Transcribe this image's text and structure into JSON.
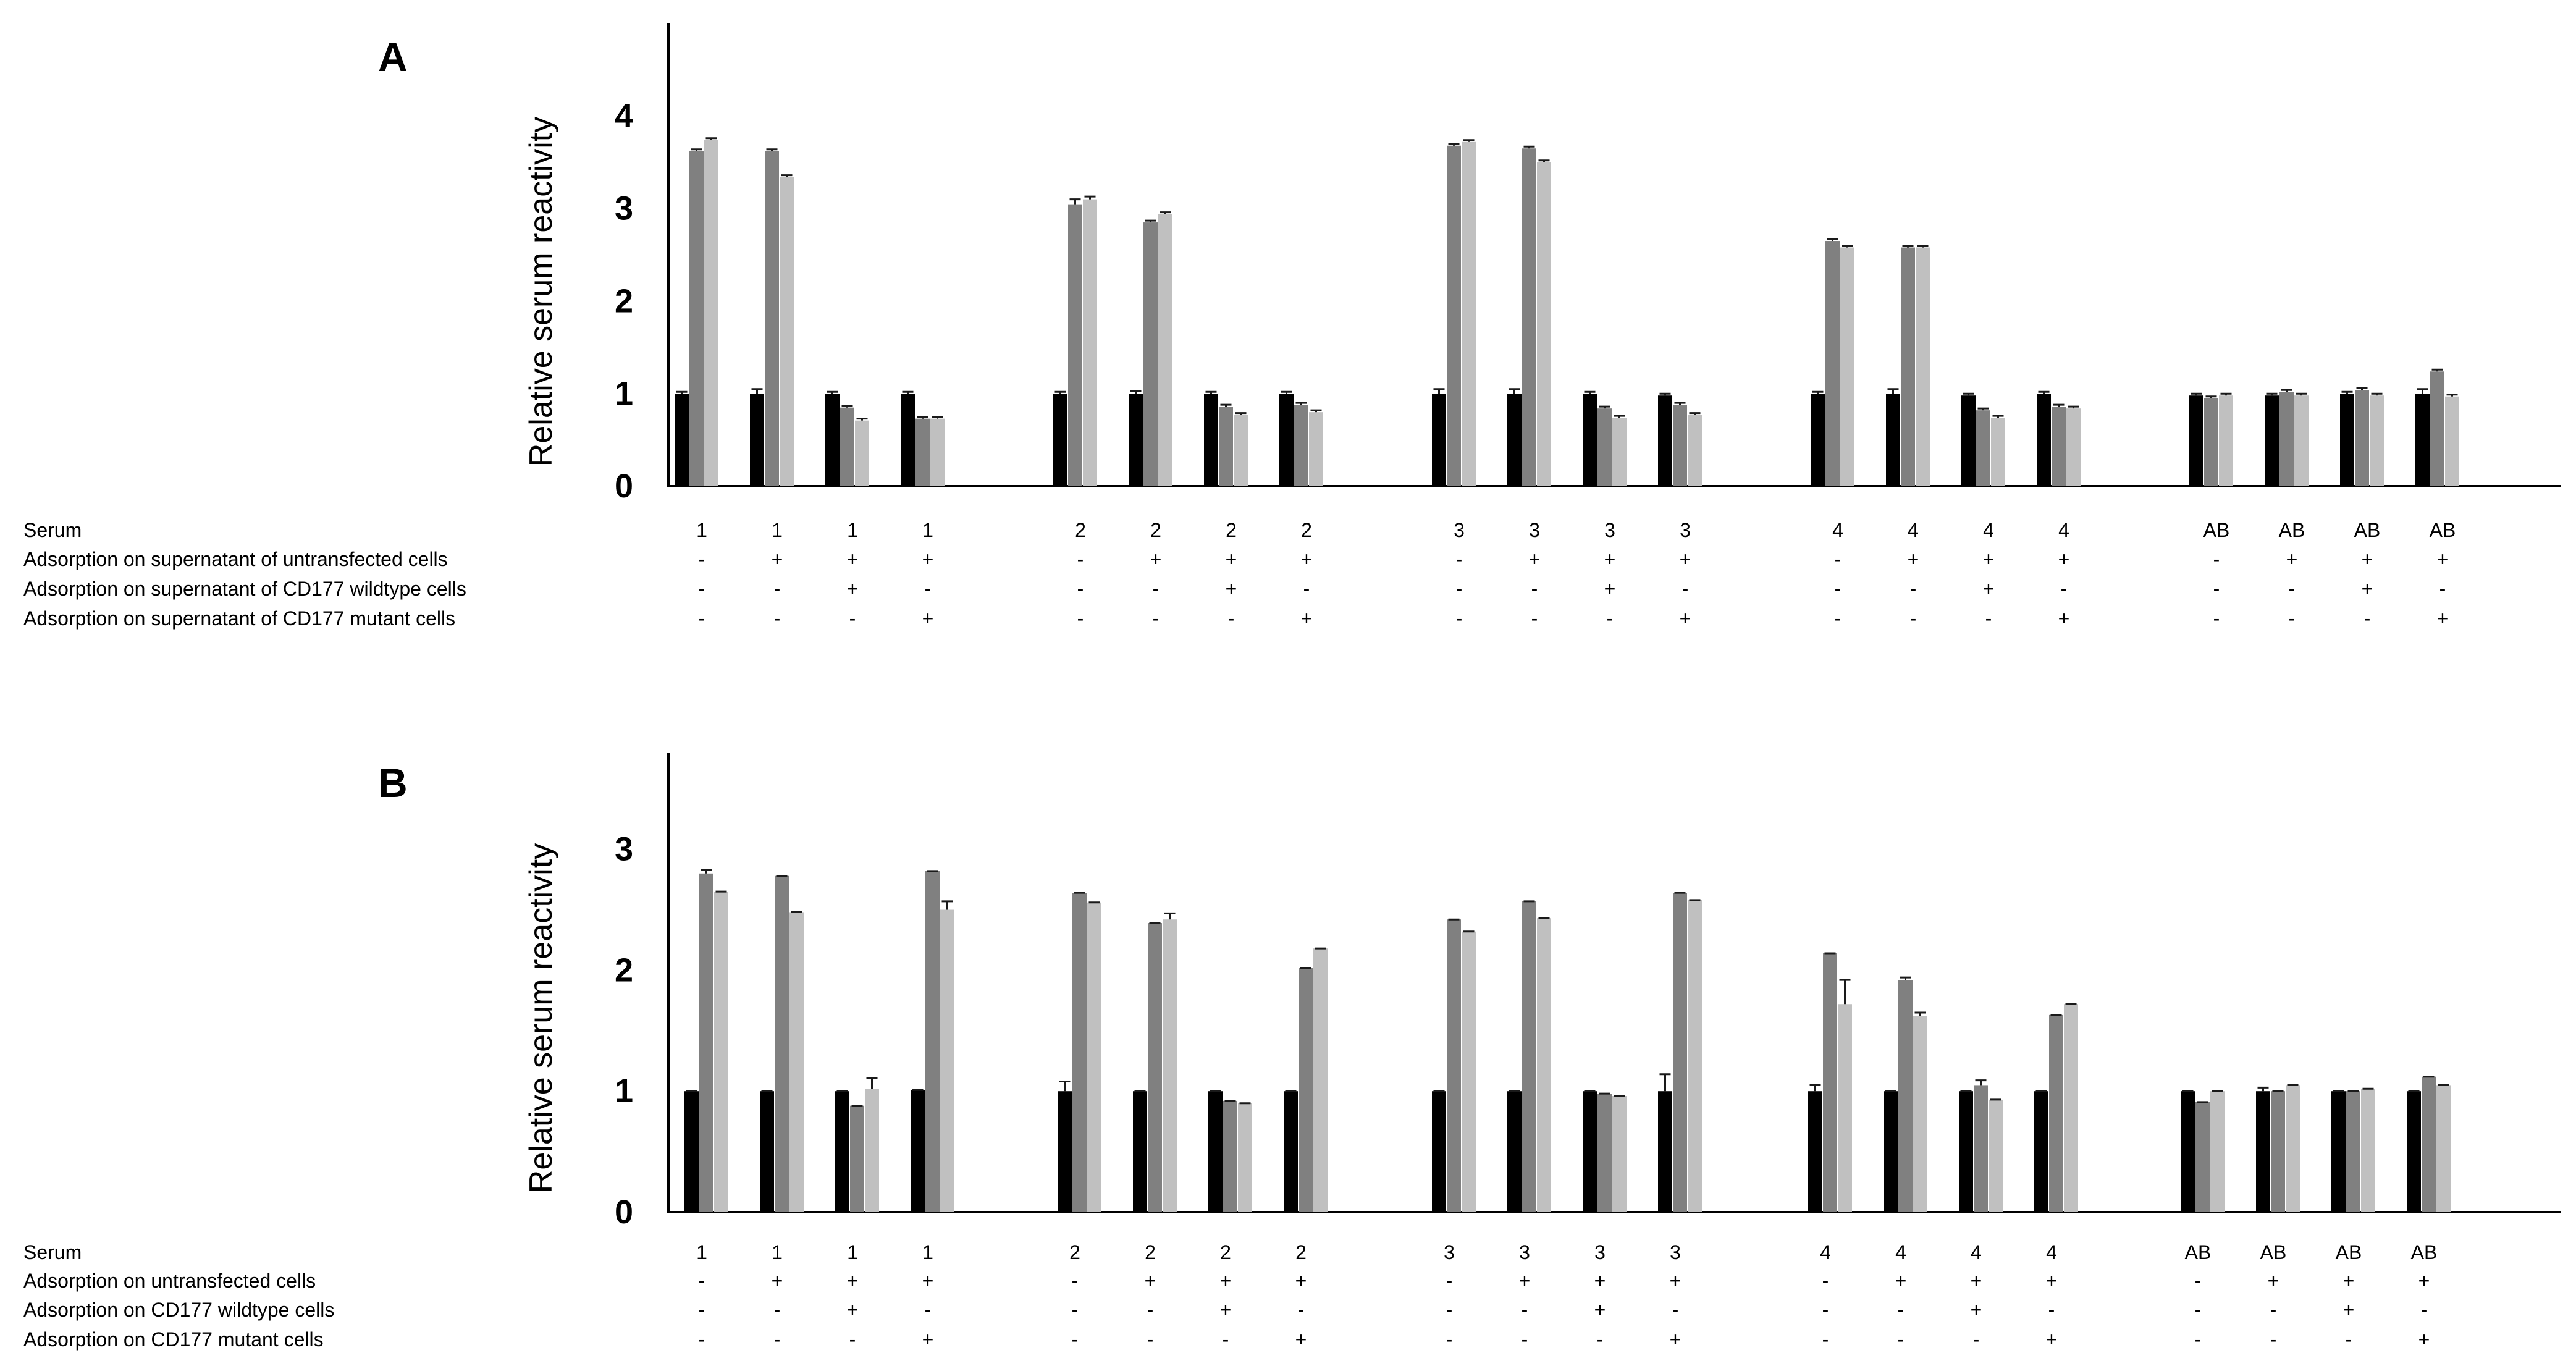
{
  "chart_data": [
    {
      "type": "bar",
      "panel": "A",
      "ylabel": "Relative serum reactivity",
      "ylim": [
        0,
        5
      ],
      "yticks": [
        0,
        1,
        2,
        3,
        4
      ],
      "grid": false,
      "legend": "none",
      "series_colors": [
        "#000000",
        "#808080",
        "#c0c0c0"
      ],
      "row_labels": [
        "Serum",
        "Adsorption on supernatant of untransfected cells",
        "Adsorption on supernatant of CD177 wildtype cells",
        "Adsorption on supernatant of CD177 mutant cells"
      ],
      "conditions": [
        {
          "rows": [
            "1",
            "-",
            "-",
            "-"
          ],
          "values": [
            1.0,
            3.62,
            3.74
          ],
          "errors": [
            0.02,
            0.02,
            0.02
          ]
        },
        {
          "rows": [
            "1",
            "+",
            "-",
            "-"
          ],
          "values": [
            1.0,
            3.62,
            3.34
          ],
          "errors": [
            0.05,
            0.02,
            0.02
          ]
        },
        {
          "rows": [
            "1",
            "+",
            "+",
            "-"
          ],
          "values": [
            1.0,
            0.85,
            0.71
          ],
          "errors": [
            0.02,
            0.02,
            0.02
          ]
        },
        {
          "rows": [
            "1",
            "+",
            "-",
            "+"
          ],
          "values": [
            1.0,
            0.73,
            0.73
          ],
          "errors": [
            0.02,
            0.02,
            0.02
          ]
        },
        {
          "rows": [
            "2",
            "-",
            "-",
            "-"
          ],
          "values": [
            1.0,
            3.04,
            3.1
          ],
          "errors": [
            0.02,
            0.06,
            0.03
          ]
        },
        {
          "rows": [
            "2",
            "+",
            "-",
            "-"
          ],
          "values": [
            1.0,
            2.85,
            2.94
          ],
          "errors": [
            0.03,
            0.02,
            0.02
          ]
        },
        {
          "rows": [
            "2",
            "+",
            "+",
            "-"
          ],
          "values": [
            1.0,
            0.86,
            0.77
          ],
          "errors": [
            0.02,
            0.02,
            0.02
          ]
        },
        {
          "rows": [
            "2",
            "+",
            "-",
            "+"
          ],
          "values": [
            1.0,
            0.88,
            0.8
          ],
          "errors": [
            0.02,
            0.02,
            0.02
          ]
        },
        {
          "rows": [
            "3",
            "-",
            "-",
            "-"
          ],
          "values": [
            1.0,
            3.68,
            3.72
          ],
          "errors": [
            0.05,
            0.02,
            0.02
          ]
        },
        {
          "rows": [
            "3",
            "+",
            "-",
            "-"
          ],
          "values": [
            1.0,
            3.65,
            3.5
          ],
          "errors": [
            0.05,
            0.02,
            0.02
          ]
        },
        {
          "rows": [
            "3",
            "+",
            "+",
            "-"
          ],
          "values": [
            1.0,
            0.84,
            0.74
          ],
          "errors": [
            0.02,
            0.02,
            0.02
          ]
        },
        {
          "rows": [
            "3",
            "+",
            "-",
            "+"
          ],
          "values": [
            0.98,
            0.88,
            0.77
          ],
          "errors": [
            0.02,
            0.02,
            0.02
          ]
        },
        {
          "rows": [
            "4",
            "-",
            "-",
            "-"
          ],
          "values": [
            1.0,
            2.65,
            2.58
          ],
          "errors": [
            0.02,
            0.02,
            0.02
          ]
        },
        {
          "rows": [
            "4",
            "+",
            "-",
            "-"
          ],
          "values": [
            1.0,
            2.58,
            2.58
          ],
          "errors": [
            0.05,
            0.02,
            0.02
          ]
        },
        {
          "rows": [
            "4",
            "+",
            "+",
            "-"
          ],
          "values": [
            0.98,
            0.82,
            0.74
          ],
          "errors": [
            0.02,
            0.02,
            0.02
          ]
        },
        {
          "rows": [
            "4",
            "+",
            "-",
            "+"
          ],
          "values": [
            1.0,
            0.86,
            0.84
          ],
          "errors": [
            0.02,
            0.02,
            0.02
          ]
        },
        {
          "rows": [
            "AB",
            "-",
            "-",
            "-"
          ],
          "values": [
            0.98,
            0.95,
            0.98
          ],
          "errors": [
            0.02,
            0.02,
            0.02
          ]
        },
        {
          "rows": [
            "AB",
            "+",
            "-",
            "-"
          ],
          "values": [
            0.98,
            1.02,
            0.98
          ],
          "errors": [
            0.02,
            0.02,
            0.02
          ]
        },
        {
          "rows": [
            "AB",
            "+",
            "+",
            "-"
          ],
          "values": [
            1.0,
            1.04,
            0.98
          ],
          "errors": [
            0.02,
            0.02,
            0.02
          ]
        },
        {
          "rows": [
            "AB",
            "+",
            "-",
            "+"
          ],
          "values": [
            1.0,
            1.24,
            0.97
          ],
          "errors": [
            0.05,
            0.02,
            0.02
          ]
        }
      ]
    },
    {
      "type": "bar",
      "panel": "B",
      "ylabel": "Relative serum reactivity",
      "ylim": [
        0,
        3.8
      ],
      "yticks": [
        0,
        1,
        2,
        3
      ],
      "grid": false,
      "legend": "none",
      "series_colors": [
        "#000000",
        "#808080",
        "#c0c0c0"
      ],
      "row_labels": [
        "Serum",
        "Adsorption on untransfected cells",
        "Adsorption on CD177 wildtype cells",
        "Adsorption on CD177 mutant cells"
      ],
      "conditions": [
        {
          "rows": [
            "1",
            "-",
            "-",
            "-"
          ],
          "values": [
            1.0,
            2.8,
            2.65
          ],
          "errors": [
            0.0,
            0.03,
            0.0
          ]
        },
        {
          "rows": [
            "1",
            "+",
            "-",
            "-"
          ],
          "values": [
            1.0,
            2.78,
            2.48
          ],
          "errors": [
            0.0,
            0.0,
            0.0
          ]
        },
        {
          "rows": [
            "1",
            "+",
            "+",
            "-"
          ],
          "values": [
            1.0,
            0.88,
            1.02
          ],
          "errors": [
            0.0,
            0.0,
            0.09
          ]
        },
        {
          "rows": [
            "1",
            "+",
            "-",
            "+"
          ],
          "values": [
            1.01,
            2.82,
            2.5
          ],
          "errors": [
            0.0,
            0.0,
            0.07
          ]
        },
        {
          "rows": [
            "2",
            "-",
            "-",
            "-"
          ],
          "values": [
            1.0,
            2.64,
            2.56
          ],
          "errors": [
            0.08,
            0.0,
            0.0
          ]
        },
        {
          "rows": [
            "2",
            "+",
            "-",
            "-"
          ],
          "values": [
            1.0,
            2.39,
            2.42
          ],
          "errors": [
            0.0,
            0.0,
            0.05
          ]
        },
        {
          "rows": [
            "2",
            "+",
            "+",
            "-"
          ],
          "values": [
            1.0,
            0.92,
            0.9
          ],
          "errors": [
            0.0,
            0.0,
            0.0
          ]
        },
        {
          "rows": [
            "2",
            "+",
            "-",
            "+"
          ],
          "values": [
            1.0,
            2.02,
            2.18
          ],
          "errors": [
            0.0,
            0.0,
            0.0
          ]
        },
        {
          "rows": [
            "3",
            "-",
            "-",
            "-"
          ],
          "values": [
            1.0,
            2.42,
            2.32
          ],
          "errors": [
            0.0,
            0.0,
            0.0
          ]
        },
        {
          "rows": [
            "3",
            "+",
            "-",
            "-"
          ],
          "values": [
            1.0,
            2.57,
            2.43
          ],
          "errors": [
            0.0,
            0.0,
            0.0
          ]
        },
        {
          "rows": [
            "3",
            "+",
            "+",
            "-"
          ],
          "values": [
            1.0,
            0.98,
            0.96
          ],
          "errors": [
            0.0,
            0.0,
            0.0
          ]
        },
        {
          "rows": [
            "3",
            "+",
            "-",
            "+"
          ],
          "values": [
            1.0,
            2.64,
            2.58
          ],
          "errors": [
            0.14,
            0.0,
            0.0
          ]
        },
        {
          "rows": [
            "4",
            "-",
            "-",
            "-"
          ],
          "values": [
            1.0,
            2.14,
            1.72
          ],
          "errors": [
            0.05,
            0.0,
            0.2
          ]
        },
        {
          "rows": [
            "4",
            "+",
            "-",
            "-"
          ],
          "values": [
            1.0,
            1.92,
            1.62
          ],
          "errors": [
            0.0,
            0.02,
            0.03
          ]
        },
        {
          "rows": [
            "4",
            "+",
            "+",
            "-"
          ],
          "values": [
            1.0,
            1.05,
            0.93
          ],
          "errors": [
            0.0,
            0.04,
            0.0
          ]
        },
        {
          "rows": [
            "4",
            "+",
            "-",
            "+"
          ],
          "values": [
            1.0,
            1.63,
            1.72
          ],
          "errors": [
            0.0,
            0.0,
            0.0
          ]
        },
        {
          "rows": [
            "AB",
            "-",
            "-",
            "-"
          ],
          "values": [
            1.0,
            0.91,
            1.0
          ],
          "errors": [
            0.0,
            0.0,
            0.0
          ]
        },
        {
          "rows": [
            "AB",
            "+",
            "-",
            "-"
          ],
          "values": [
            1.0,
            1.0,
            1.05
          ],
          "errors": [
            0.03,
            0.0,
            0.0
          ]
        },
        {
          "rows": [
            "AB",
            "+",
            "+",
            "-"
          ],
          "values": [
            1.0,
            1.0,
            1.02
          ],
          "errors": [
            0.0,
            0.0,
            0.0
          ]
        },
        {
          "rows": [
            "AB",
            "+",
            "-",
            "+"
          ],
          "values": [
            1.0,
            1.12,
            1.05
          ],
          "errors": [
            0.0,
            0.0,
            0.0
          ]
        }
      ]
    }
  ]
}
